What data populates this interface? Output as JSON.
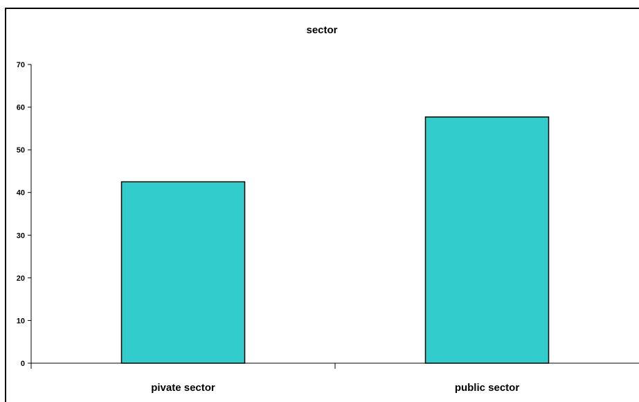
{
  "chart_data": {
    "type": "bar",
    "title": "sector",
    "categories": [
      "pivate sector",
      "public sector"
    ],
    "values": [
      42.5,
      57.7
    ],
    "ylim": [
      0,
      70
    ],
    "yticks": [
      0,
      10,
      20,
      30,
      40,
      50,
      60,
      70
    ],
    "xlabel": "",
    "ylabel": "",
    "grid": false,
    "legend": "none",
    "bar_color": "#33CCCC",
    "bar_edge_color": "#000000"
  }
}
